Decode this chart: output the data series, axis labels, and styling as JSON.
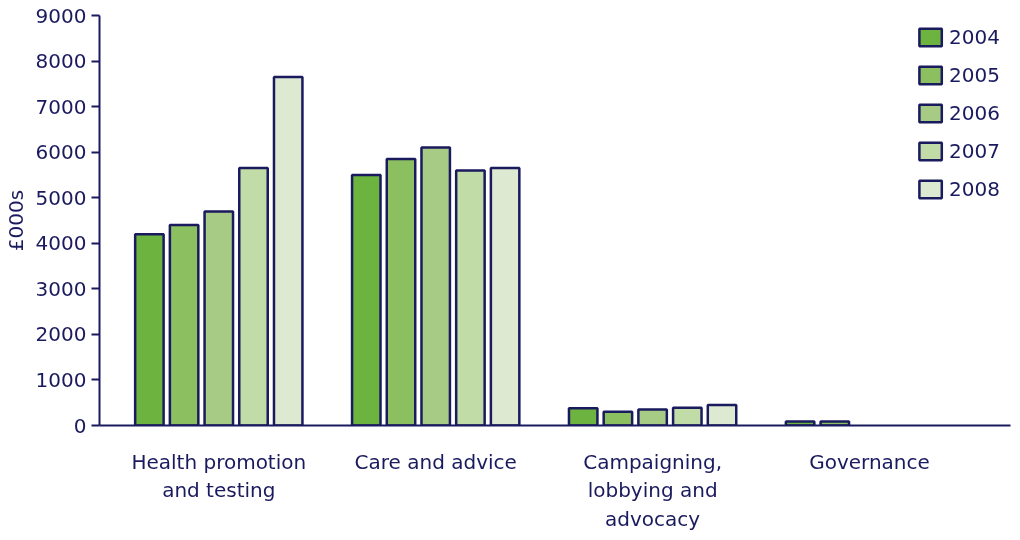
{
  "chart_data": {
    "type": "bar",
    "ylabel": "£000s",
    "categories": [
      "Health promotion\nand testing",
      "Care and advice",
      "Campaigning,\nlobbying and\nadvocacy",
      "Governance"
    ],
    "ylim": [
      0,
      9000
    ],
    "yticks": [
      0,
      1000,
      2000,
      3000,
      4000,
      5000,
      6000,
      7000,
      8000,
      9000
    ],
    "grid": false,
    "legend": "top right",
    "series": [
      {
        "name": "2004",
        "color": "#6db33f",
        "values": [
          4200,
          5500,
          380,
          90
        ]
      },
      {
        "name": "2005",
        "color": "#8bbf5f",
        "values": [
          4400,
          5850,
          300,
          90
        ]
      },
      {
        "name": "2006",
        "color": "#a7cb85",
        "values": [
          4700,
          6100,
          350,
          null
        ]
      },
      {
        "name": "2007",
        "color": "#c2dca8",
        "values": [
          5650,
          5600,
          390,
          null
        ]
      },
      {
        "name": "2008",
        "color": "#dde9d0",
        "values": [
          7650,
          5650,
          450,
          null
        ]
      }
    ]
  }
}
